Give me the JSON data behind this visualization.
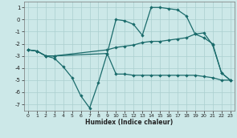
{
  "xlabel": "Humidex (Indice chaleur)",
  "bg_color": "#cce8e8",
  "grid_color": "#aacfcf",
  "line_color": "#1a6b6b",
  "xlim": [
    -0.5,
    23.5
  ],
  "ylim": [
    -7.5,
    1.5
  ],
  "xticks": [
    0,
    1,
    2,
    3,
    4,
    5,
    6,
    7,
    8,
    9,
    10,
    11,
    12,
    13,
    14,
    15,
    16,
    17,
    18,
    19,
    20,
    21,
    22,
    23
  ],
  "yticks": [
    -7,
    -6,
    -5,
    -4,
    -3,
    -2,
    -1,
    0,
    1
  ],
  "curve1_x": [
    0,
    1,
    2,
    3,
    9,
    10,
    11,
    12,
    13,
    14,
    15,
    16,
    17,
    18,
    19,
    20,
    21,
    22,
    23
  ],
  "curve1_y": [
    -2.5,
    -2.6,
    -3.0,
    -3.0,
    -2.8,
    -4.5,
    -4.5,
    -4.6,
    -4.6,
    -4.6,
    -4.6,
    -4.6,
    -4.6,
    -4.6,
    -4.6,
    -4.7,
    -4.8,
    -5.0,
    -5.0
  ],
  "curve2_x": [
    0,
    1,
    2,
    3,
    9,
    10,
    11,
    12,
    13,
    14,
    15,
    16,
    17,
    18,
    19,
    20,
    21,
    22,
    23
  ],
  "curve2_y": [
    -2.5,
    -2.6,
    -3.0,
    -3.0,
    -2.5,
    -2.3,
    -2.2,
    -2.1,
    -1.9,
    -1.8,
    -1.8,
    -1.7,
    -1.6,
    -1.5,
    -1.2,
    -1.1,
    -2.1,
    -4.4,
    -5.0
  ],
  "curve3_x": [
    0,
    1,
    2,
    3,
    4,
    5,
    6,
    7,
    8,
    9,
    10,
    11,
    12,
    13,
    14,
    15,
    16,
    17,
    18,
    19,
    20,
    21,
    22,
    23
  ],
  "curve3_y": [
    -2.5,
    -2.6,
    -3.0,
    -3.2,
    -3.9,
    -4.8,
    -6.3,
    -7.3,
    -5.2,
    -2.8,
    -0.0,
    -0.1,
    -0.4,
    -1.3,
    1.0,
    1.0,
    0.9,
    0.8,
    0.3,
    -1.2,
    -1.5,
    -2.0,
    -4.4,
    -5.0
  ],
  "markersize": 2.2,
  "lw": 0.9
}
